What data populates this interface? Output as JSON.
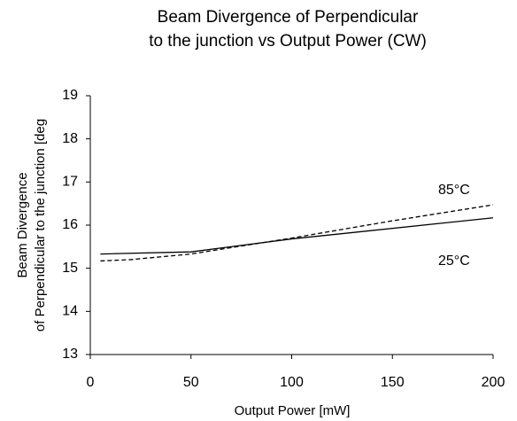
{
  "chart_data": {
    "type": "line",
    "title": [
      "Beam Divergence of Perpendicular",
      "to the junction vs Output Power (CW)"
    ],
    "xlabel": "Output Power [mW]",
    "ylabel": [
      "Beam Divergence",
      "of Perpendicular to the junction [deg"
    ],
    "series": [
      {
        "name": "25°C",
        "color": "#000000",
        "dash": false,
        "x": [
          5,
          50,
          100,
          200
        ],
        "values": [
          15.33,
          15.38,
          15.68,
          16.17
        ]
      },
      {
        "name": "85°C",
        "color": "#000000",
        "dash": true,
        "x": [
          5,
          20,
          50,
          100,
          150,
          200
        ],
        "values": [
          15.17,
          15.2,
          15.33,
          15.7,
          16.1,
          16.47
        ]
      }
    ],
    "xlim": [
      0,
      200
    ],
    "xticks": [
      0,
      50,
      100,
      150,
      200
    ],
    "ylim": [
      13,
      19
    ],
    "yticks": [
      13,
      14,
      15,
      16,
      17,
      18,
      19
    ],
    "grid": false
  }
}
